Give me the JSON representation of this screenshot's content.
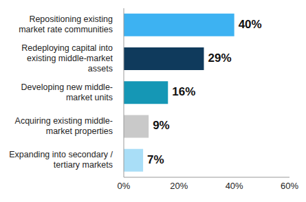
{
  "chart_data": {
    "type": "bar",
    "orientation": "horizontal",
    "categories": [
      "Repositioning existing market rate communities",
      "Redeploying capital into existing middle-market assets",
      "Developing new middle-market units",
      "Acquiring existing middle-market properties",
      "Expanding into secondary / tertiary markets"
    ],
    "values": [
      40,
      29,
      16,
      9,
      7
    ],
    "value_labels": [
      "40%",
      "29%",
      "16%",
      "9%",
      "7%"
    ],
    "colors": [
      "#3db2f2",
      "#0f3a5c",
      "#1597b5",
      "#c9c9c9",
      "#a9def7"
    ],
    "data_labels": true,
    "xlim": [
      0,
      60
    ],
    "xticks": [
      {
        "value": 0,
        "label": "0%"
      },
      {
        "value": 20,
        "label": "20%"
      },
      {
        "value": 40,
        "label": "40%"
      },
      {
        "value": 60,
        "label": "60%"
      }
    ],
    "grid": false
  }
}
